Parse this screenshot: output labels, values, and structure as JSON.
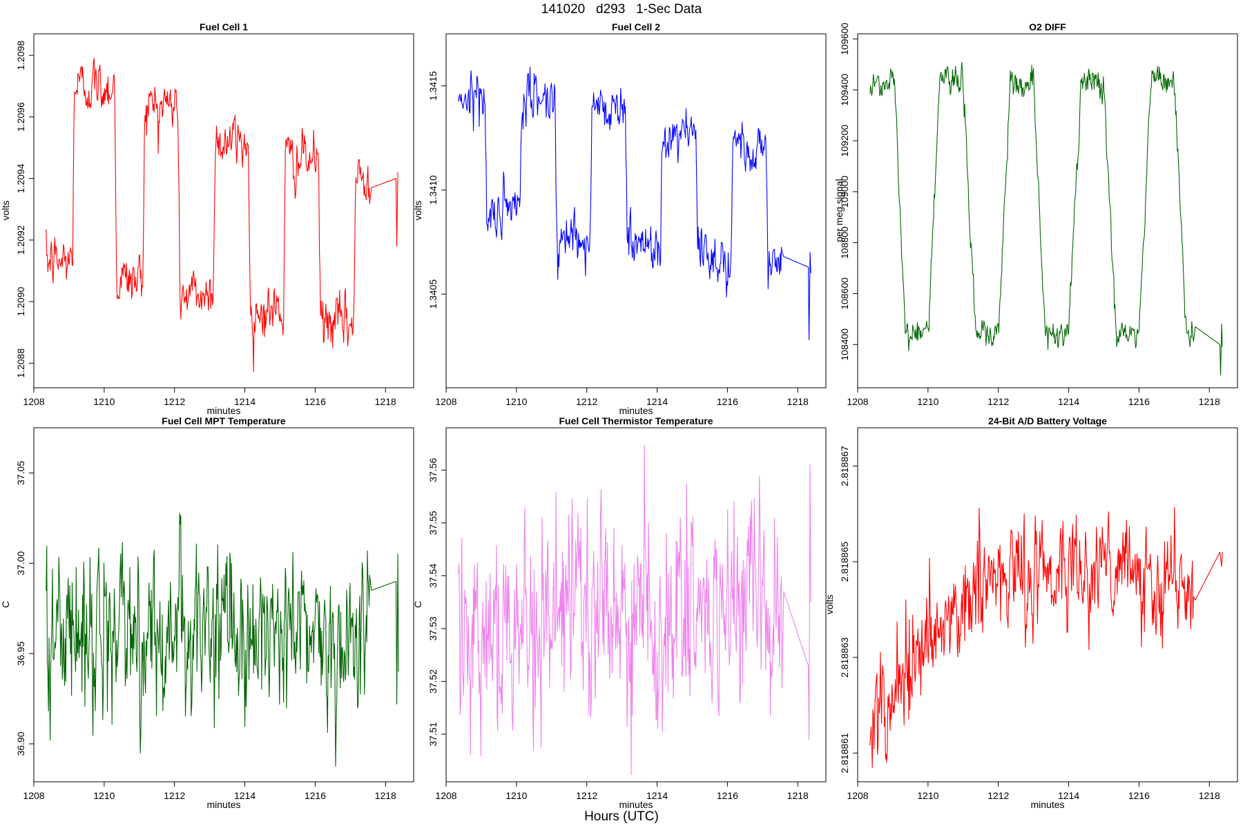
{
  "figure": {
    "title": "141020   d293   1-Sec Data",
    "bottom_label": "Hours (UTC)"
  },
  "chart_data": [
    {
      "type": "line",
      "title": "Fuel Cell 1",
      "xlabel": "minutes",
      "ylabel": "volts",
      "color": "#ff0000",
      "xlim": [
        1208.0,
        1218.8
      ],
      "ylim": [
        1.20872,
        1.20987
      ],
      "x_ticks": [
        1208,
        1210,
        1212,
        1214,
        1216,
        1218
      ],
      "y_ticks": [
        1.2088,
        1.209,
        1.2092,
        1.2094,
        1.2096,
        1.2098
      ],
      "y_tick_labels": [
        "1.2088",
        "1.2090",
        "1.2092",
        "1.2094",
        "1.2096",
        "1.2098"
      ],
      "series": [
        {
          "x_start": 1208.35,
          "x_end": 1217.55,
          "segments": [
            [
              1208.35,
              1209.1,
              1.20913
            ],
            [
              1209.15,
              1210.3,
              1.2097
            ],
            [
              1210.35,
              1211.1,
              1.20907
            ],
            [
              1211.15,
              1212.1,
              1.20964
            ],
            [
              1212.15,
              1213.1,
              1.20902
            ],
            [
              1213.15,
              1214.1,
              1.20952
            ],
            [
              1214.15,
              1215.1,
              1.20897
            ],
            [
              1215.15,
              1216.1,
              1.20946
            ],
            [
              1216.15,
              1217.1,
              1.20893
            ],
            [
              1217.15,
              1217.55,
              1.2094
            ]
          ],
          "noise": 4.2e-05,
          "tail": [
            [
              1217.6,
              1.20937
            ],
            [
              1218.3,
              1.2094
            ],
            [
              1218.32,
              1.20918
            ],
            [
              1218.35,
              1.20942
            ]
          ]
        }
      ]
    },
    {
      "type": "line",
      "title": "Fuel Cell 2",
      "xlabel": "minutes",
      "ylabel": "volts",
      "color": "#0000ff",
      "xlim": [
        1208.0,
        1218.8
      ],
      "ylim": [
        1.34005,
        1.34175
      ],
      "x_ticks": [
        1208,
        1210,
        1212,
        1214,
        1216,
        1218
      ],
      "y_ticks": [
        1.3405,
        1.341,
        1.3415
      ],
      "y_tick_labels": [
        "1.3405",
        "1.3410",
        "1.3415"
      ],
      "series": [
        {
          "x_start": 1208.35,
          "x_end": 1217.55,
          "segments": [
            [
              1208.35,
              1209.1,
              1.34146
            ],
            [
              1209.15,
              1210.1,
              1.34088
            ],
            [
              1210.15,
              1211.1,
              1.34144
            ],
            [
              1211.15,
              1212.1,
              1.34078
            ],
            [
              1212.15,
              1213.1,
              1.3414
            ],
            [
              1213.15,
              1214.1,
              1.34074
            ],
            [
              1214.15,
              1215.1,
              1.34128
            ],
            [
              1215.15,
              1216.1,
              1.34068
            ],
            [
              1216.15,
              1217.1,
              1.34122
            ],
            [
              1217.15,
              1217.55,
              1.34064
            ]
          ],
          "noise": 6e-05,
          "tail": [
            [
              1217.6,
              1.34068
            ],
            [
              1218.3,
              1.34063
            ],
            [
              1218.32,
              1.34028
            ],
            [
              1218.35,
              1.3407
            ],
            [
              1218.37,
              1.3406
            ]
          ]
        }
      ]
    },
    {
      "type": "line",
      "title": "O2 DIFF",
      "xlabel": "",
      "ylabel": "per meg signal",
      "color": "#006400",
      "xlim": [
        1208.0,
        1218.8
      ],
      "ylim": [
        108230,
        109620
      ],
      "x_ticks": [
        1208,
        1210,
        1212,
        1214,
        1216,
        1218
      ],
      "y_ticks": [
        108400,
        108600,
        108800,
        109000,
        109200,
        109400,
        109600
      ],
      "y_tick_labels": [
        "108400",
        "108600",
        "108800",
        "109000",
        "109200",
        "109400",
        "109600"
      ],
      "series": [
        {
          "x_start": 1208.35,
          "x_end": 1217.55,
          "segments": [
            [
              1208.35,
              1209.05,
              109430
            ],
            [
              1209.35,
              1210.0,
              108455
            ],
            [
              1210.35,
              1211.0,
              109440
            ],
            [
              1211.35,
              1212.0,
              108440
            ],
            [
              1212.35,
              1213.0,
              109430
            ],
            [
              1213.35,
              1214.0,
              108430
            ],
            [
              1214.35,
              1215.0,
              109420
            ],
            [
              1215.35,
              1216.0,
              108440
            ],
            [
              1216.35,
              1217.0,
              109440
            ],
            [
              1217.35,
              1217.55,
              108440
            ]
          ],
          "noise": 30,
          "tail": [
            [
              1217.6,
              108470
            ],
            [
              1218.3,
              108400
            ],
            [
              1218.32,
              108280
            ],
            [
              1218.35,
              108480
            ],
            [
              1218.37,
              108390
            ]
          ]
        }
      ]
    },
    {
      "type": "line",
      "title": "Fuel Cell MPT Temperature",
      "xlabel": "minutes",
      "ylabel": "C",
      "color": "#006400",
      "xlim": [
        1208.0,
        1218.8
      ],
      "ylim": [
        36.879,
        37.075
      ],
      "x_ticks": [
        1208,
        1210,
        1212,
        1214,
        1216,
        1218
      ],
      "y_ticks": [
        36.9,
        36.95,
        37.0,
        37.05
      ],
      "y_tick_labels": [
        "36.90",
        "36.95",
        "37.00",
        "37.05"
      ],
      "series": [
        {
          "x_start": 1208.35,
          "x_end": 1217.55,
          "segments": [
            [
              1208.35,
              1217.55,
              36.962
            ]
          ],
          "noise": 0.022,
          "tail": [
            [
              1217.6,
              36.985
            ],
            [
              1218.3,
              36.99
            ],
            [
              1218.32,
              36.922
            ],
            [
              1218.35,
              37.005
            ],
            [
              1218.37,
              36.94
            ]
          ]
        }
      ]
    },
    {
      "type": "line",
      "title": "Fuel Cell Thermistor Temperature",
      "xlabel": "minutes",
      "ylabel": "C",
      "color": "#ee82ee",
      "xlim": [
        1208.0,
        1218.8
      ],
      "ylim": [
        37.501,
        37.568
      ],
      "x_ticks": [
        1208,
        1210,
        1212,
        1214,
        1216,
        1218
      ],
      "y_ticks": [
        37.51,
        37.52,
        37.53,
        37.54,
        37.55,
        37.56
      ],
      "y_tick_labels": [
        "37.51",
        "37.52",
        "37.53",
        "37.54",
        "37.55",
        "37.56"
      ],
      "series": [
        {
          "x_start": 1208.35,
          "x_end": 1217.55,
          "segments": [
            [
              1208.35,
              1217.55,
              37.532
            ]
          ],
          "noise": 0.01,
          "tail": [
            [
              1217.6,
              37.537
            ],
            [
              1218.3,
              37.523
            ],
            [
              1218.32,
              37.509
            ],
            [
              1218.35,
              37.561
            ],
            [
              1218.37,
              37.535
            ]
          ]
        }
      ]
    },
    {
      "type": "line",
      "title": "24-Bit A/D Battery Voltage",
      "xlabel": "minutes",
      "ylabel": "volts",
      "color": "#ff0000",
      "xlim": [
        1208.0,
        1218.8
      ],
      "ylim": [
        2.8188604,
        2.8188678
      ],
      "x_ticks": [
        1208,
        1210,
        1212,
        1214,
        1216,
        1218
      ],
      "y_ticks": [
        2.818861,
        2.818863,
        2.818865,
        2.818867
      ],
      "y_tick_labels": [
        "2.818861",
        "2.818863",
        "2.818865",
        "2.818867"
      ],
      "series": [
        {
          "x_start": 1208.35,
          "x_end": 1217.55,
          "ramp": [
            [
              1208.35,
              2.8188618
            ],
            [
              1209.5,
              2.8188628
            ],
            [
              1210.6,
              2.8188637
            ],
            [
              1211.5,
              2.8188645
            ],
            [
              1213.0,
              2.8188648
            ],
            [
              1215.0,
              2.818865
            ],
            [
              1216.5,
              2.8188646
            ],
            [
              1217.55,
              2.8188642
            ]
          ],
          "noise": 5.5e-07,
          "tail": [
            [
              1217.6,
              2.8188642
            ],
            [
              1218.3,
              2.8188652
            ],
            [
              1218.35,
              2.8188649
            ],
            [
              1218.37,
              2.8188652
            ]
          ]
        }
      ]
    }
  ]
}
